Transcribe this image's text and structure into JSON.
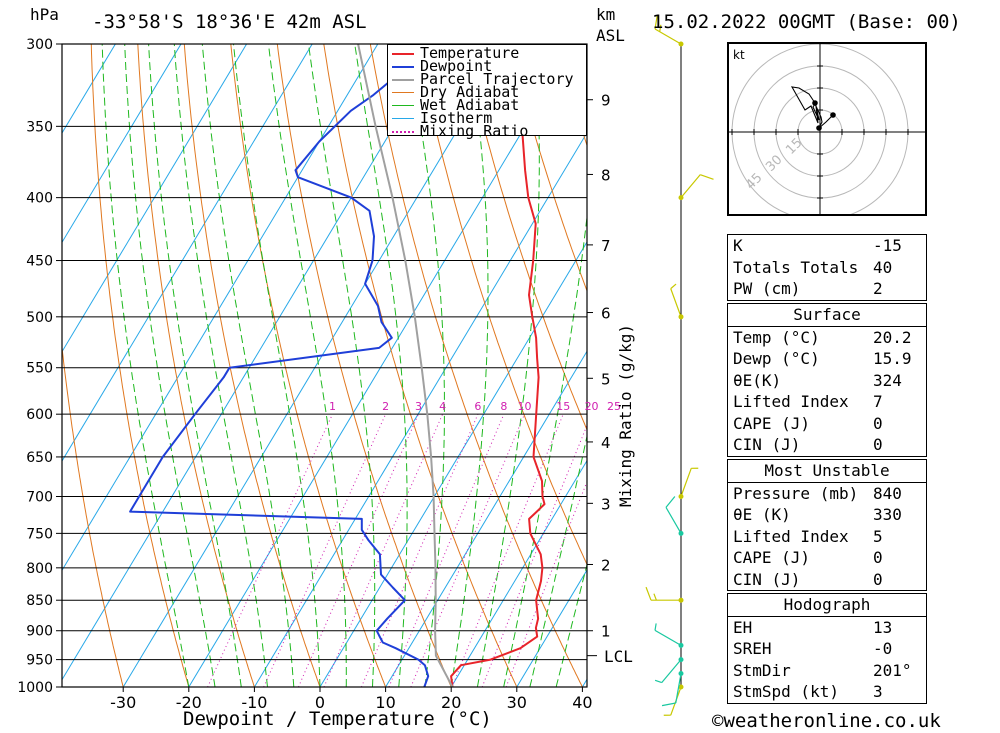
{
  "header": {
    "pressure_unit": "hPa",
    "location": "-33°58'S  18°36'E  42m  ASL",
    "km_unit": "km",
    "asl_label": "ASL",
    "datetime": "15.02.2022  00GMT  (Base: 00)"
  },
  "colors": {
    "temperature": "#e8242a",
    "dewpoint": "#1f3fd8",
    "parcel": "#a0a0a0",
    "dry_adiabat": "#e07820",
    "wet_adiabat": "#1fb81f",
    "isotherm": "#27a8e8",
    "mixing_ratio": "#d01fb0",
    "wind": "#c8c800",
    "wind_low": "#19c8a0"
  },
  "legend": [
    {
      "label": "Temperature",
      "color_key": "temperature",
      "style": "solid"
    },
    {
      "label": "Dewpoint",
      "color_key": "dewpoint",
      "style": "solid"
    },
    {
      "label": "Parcel Trajectory",
      "color_key": "parcel",
      "style": "solid"
    },
    {
      "label": "Dry Adiabat",
      "color_key": "dry_adiabat",
      "style": "solid"
    },
    {
      "label": "Wet Adiabat",
      "color_key": "wet_adiabat",
      "style": "solid"
    },
    {
      "label": "Isotherm",
      "color_key": "isotherm",
      "style": "solid"
    },
    {
      "label": "Mixing Ratio",
      "color_key": "mixing_ratio",
      "style": "dotted"
    }
  ],
  "chart_data": {
    "type": "line",
    "title": "-33°58'S 18°36'E 42m ASL",
    "xlabel": "Dewpoint / Temperature (°C)",
    "ylabel": "hPa",
    "right_axis_label": "Mixing Ratio (g/kg)",
    "xlim": [
      -40,
      40
    ],
    "ylim": [
      1000,
      300
    ],
    "pressure_ticks": [
      300,
      350,
      400,
      450,
      500,
      550,
      600,
      650,
      700,
      750,
      800,
      850,
      900,
      950,
      1000
    ],
    "temp_ticks": [
      -30,
      -20,
      -10,
      0,
      10,
      20,
      30,
      40
    ],
    "km_ticks": [
      {
        "label": "1",
        "p": 900
      },
      {
        "label": "2",
        "p": 795
      },
      {
        "label": "3",
        "p": 709
      },
      {
        "label": "4",
        "p": 632
      },
      {
        "label": "5",
        "p": 561
      },
      {
        "label": "6",
        "p": 496
      },
      {
        "label": "7",
        "p": 437
      },
      {
        "label": "8",
        "p": 383
      },
      {
        "label": "9",
        "p": 333
      }
    ],
    "lcl": {
      "label": "LCL",
      "p": 943
    },
    "mixing_ratio_labels": [
      "1",
      "2",
      "3",
      "4",
      "6",
      "8",
      "10",
      "15",
      "20",
      "25"
    ],
    "series": [
      {
        "name": "Temperature",
        "color_key": "temperature",
        "points": [
          [
            1000,
            20.2
          ],
          [
            980,
            19
          ],
          [
            960,
            19.5
          ],
          [
            950,
            23.5
          ],
          [
            930,
            27
          ],
          [
            910,
            28.5
          ],
          [
            895,
            27.5
          ],
          [
            880,
            27
          ],
          [
            850,
            25
          ],
          [
            820,
            24
          ],
          [
            800,
            23
          ],
          [
            780,
            21.5
          ],
          [
            750,
            18
          ],
          [
            730,
            16.5
          ],
          [
            720,
            17
          ],
          [
            710,
            17.5
          ],
          [
            700,
            16.5
          ],
          [
            680,
            15
          ],
          [
            650,
            11.5
          ],
          [
            600,
            8
          ],
          [
            560,
            5
          ],
          [
            540,
            3
          ],
          [
            520,
            1
          ],
          [
            500,
            -1.5
          ],
          [
            480,
            -4
          ],
          [
            450,
            -6.5
          ],
          [
            420,
            -9.5
          ],
          [
            400,
            -13
          ],
          [
            380,
            -16
          ],
          [
            350,
            -20.5
          ],
          [
            320,
            -26.5
          ],
          [
            300,
            -31
          ]
        ]
      },
      {
        "name": "Dewpoint",
        "color_key": "dewpoint",
        "points": [
          [
            1000,
            15.9
          ],
          [
            980,
            15.5
          ],
          [
            960,
            14
          ],
          [
            950,
            12.5
          ],
          [
            930,
            8
          ],
          [
            920,
            5.5
          ],
          [
            910,
            4.5
          ],
          [
            900,
            3.5
          ],
          [
            880,
            4
          ],
          [
            850,
            5
          ],
          [
            830,
            2
          ],
          [
            810,
            -1
          ],
          [
            780,
            -3
          ],
          [
            760,
            -6
          ],
          [
            745,
            -8
          ],
          [
            730,
            -9
          ],
          [
            720,
            -45
          ],
          [
            700,
            -45
          ],
          [
            650,
            -45
          ],
          [
            600,
            -44
          ],
          [
            560,
            -43
          ],
          [
            550,
            -43
          ],
          [
            530,
            -22
          ],
          [
            520,
            -21
          ],
          [
            505,
            -24
          ],
          [
            490,
            -26
          ],
          [
            470,
            -30
          ],
          [
            450,
            -31
          ],
          [
            430,
            -33
          ],
          [
            410,
            -36
          ],
          [
            400,
            -40
          ],
          [
            385,
            -50
          ],
          [
            380,
            -51
          ],
          [
            360,
            -50
          ],
          [
            340,
            -48
          ],
          [
            330,
            -46
          ],
          [
            320,
            -44.5
          ],
          [
            310,
            -45
          ],
          [
            300,
            -47
          ]
        ]
      },
      {
        "name": "Parcel Trajectory",
        "color_key": "parcel",
        "points": [
          [
            1000,
            20.2
          ],
          [
            943,
            14.8
          ],
          [
            900,
            12.4
          ],
          [
            850,
            9.7
          ],
          [
            800,
            6.7
          ],
          [
            750,
            3.4
          ],
          [
            700,
            -0.1
          ],
          [
            650,
            -4.1
          ],
          [
            600,
            -8.6
          ],
          [
            550,
            -13.7
          ],
          [
            500,
            -19.4
          ],
          [
            450,
            -26
          ],
          [
            400,
            -33.7
          ],
          [
            350,
            -42.8
          ],
          [
            300,
            -53
          ]
        ]
      }
    ]
  },
  "wind_barbs": [
    {
      "p": 1000,
      "dir": 200,
      "spd": 5
    },
    {
      "p": 975,
      "dir": 190,
      "spd": 10
    },
    {
      "p": 950,
      "dir": 220,
      "spd": 5
    },
    {
      "p": 925,
      "dir": 300,
      "spd": 5
    },
    {
      "p": 850,
      "dir": 270,
      "spd": 15
    },
    {
      "p": 750,
      "dir": 330,
      "spd": 10
    },
    {
      "p": 700,
      "dir": 20,
      "spd": 5
    },
    {
      "p": 500,
      "dir": 340,
      "spd": 5
    },
    {
      "p": 400,
      "dir": 40,
      "spd": 10
    },
    {
      "p": 300,
      "dir": 300,
      "spd": 15
    }
  ],
  "hodograph": {
    "unit_label": "kt",
    "ring_labels": [
      "15",
      "30",
      "45"
    ]
  },
  "indices": [
    {
      "label": "K",
      "value": "-15"
    },
    {
      "label": "Totals Totals",
      "value": "40"
    },
    {
      "label": "PW (cm)",
      "value": "2"
    }
  ],
  "surface": {
    "title": "Surface",
    "rows": [
      {
        "label": "Temp (°C)",
        "value": "20.2"
      },
      {
        "label": "Dewp (°C)",
        "value": "15.9"
      },
      {
        "label": "θE(K)",
        "value": "324"
      },
      {
        "label": "Lifted Index",
        "value": "7"
      },
      {
        "label": "CAPE (J)",
        "value": "0"
      },
      {
        "label": "CIN (J)",
        "value": "0"
      }
    ]
  },
  "most_unstable": {
    "title": "Most Unstable",
    "rows": [
      {
        "label": "Pressure (mb)",
        "value": "840"
      },
      {
        "label": "θE (K)",
        "value": "330"
      },
      {
        "label": "Lifted Index",
        "value": "5"
      },
      {
        "label": "CAPE (J)",
        "value": "0"
      },
      {
        "label": "CIN (J)",
        "value": "0"
      }
    ]
  },
  "hodograph_table": {
    "title": "Hodograph",
    "rows": [
      {
        "label": "EH",
        "value": "13"
      },
      {
        "label": "SREH",
        "value": "-0"
      },
      {
        "label": "StmDir",
        "value": "201°"
      },
      {
        "label": "StmSpd (kt)",
        "value": "3"
      }
    ]
  },
  "footer": {
    "copyright": "©weatheronline.co.uk"
  }
}
